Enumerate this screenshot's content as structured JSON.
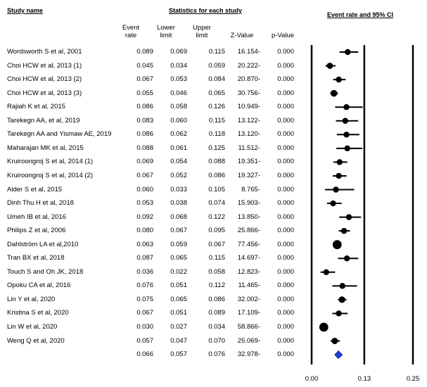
{
  "headers": {
    "study_name": "Study name",
    "statistics": "Statistics for each study",
    "plot_title": "Event rate and 95% CI"
  },
  "columns": {
    "event_rate": [
      "Event",
      "rate"
    ],
    "lower_limit": [
      "Lower",
      "limit"
    ],
    "upper_limit": [
      "Upper",
      "limit"
    ],
    "z_value": "Z-Value",
    "p_value": "p-Value"
  },
  "chart_data": {
    "type": "forest",
    "title": "Event rate and 95% CI",
    "x_ticks": [
      0.0,
      0.13,
      0.25
    ],
    "x_tick_labels": [
      "0.00",
      "0.13",
      "0.25"
    ],
    "xlim": [
      0.0,
      0.25
    ],
    "reference_lines": [
      0.0,
      0.13,
      0.25
    ],
    "studies": [
      {
        "name": "Wordsworth S et al, 2001",
        "rate": "0.089",
        "lower": "0.069",
        "upper": "0.115",
        "z": "16.154-",
        "p": "0.000"
      },
      {
        "name": "Choi HCW  et al, 2013 (1)",
        "rate": "0.045",
        "lower": "0.034",
        "upper": "0.059",
        "z": "20.222-",
        "p": "0.000"
      },
      {
        "name": "Choi HCW  et al, 2013 (2)",
        "rate": "0.067",
        "lower": "0.053",
        "upper": "0.084",
        "z": "20.870-",
        "p": "0.000"
      },
      {
        "name": "Choi HCW  et al, 2013 (3)",
        "rate": "0.055",
        "lower": "0.046",
        "upper": "0.065",
        "z": "30.756-",
        "p": "0.000"
      },
      {
        "name": "Rajiah K et al, 2015",
        "rate": "0.086",
        "lower": "0.058",
        "upper": "0.126",
        "z": "10.949-",
        "p": "0.000"
      },
      {
        "name": "Tarekegn AA, et al, 2019",
        "rate": "0.083",
        "lower": "0.060",
        "upper": "0.115",
        "z": "13.122-",
        "p": "0.000"
      },
      {
        "name": "Tarekegn AA and Yismaw AE, 2019",
        "rate": "0.086",
        "lower": "0.062",
        "upper": "0.118",
        "z": "13.120-",
        "p": "0.000"
      },
      {
        "name": "Maharajan MK et al, 2015",
        "rate": "0.088",
        "lower": "0.061",
        "upper": "0.125",
        "z": "11.512-",
        "p": "0.000"
      },
      {
        "name": "Kruiroongroj S et al, 2014 (1)",
        "rate": "0.069",
        "lower": "0.054",
        "upper": "0.088",
        "z": "19.351-",
        "p": "0.000"
      },
      {
        "name": "Kruiroongroj S et al, 2014 (2)",
        "rate": "0.067",
        "lower": "0.052",
        "upper": "0.086",
        "z": "19.327-",
        "p": "0.000"
      },
      {
        "name": "Alder S et al, 2015",
        "rate": "0.060",
        "lower": "0.033",
        "upper": "0.105",
        "z": "8.765-",
        "p": "0.000"
      },
      {
        "name": " Dinh Thu H et al, 2018",
        "rate": "0.053",
        "lower": "0.038",
        "upper": "0.074",
        "z": "15.903-",
        "p": "0.000"
      },
      {
        "name": "Umeh IB et al, 2016",
        "rate": "0.092",
        "lower": "0.068",
        "upper": "0.122",
        "z": "13.850-",
        "p": "0.000"
      },
      {
        "name": "Philips Z et al, 2006",
        "rate": "0.080",
        "lower": "0.067",
        "upper": "0.095",
        "z": "25.866-",
        "p": "0.000"
      },
      {
        "name": "Dahlström LA et al,2010",
        "rate": "0.063",
        "lower": "0.059",
        "upper": "0.067",
        "z": "77.456-",
        "p": "0.000"
      },
      {
        "name": "Tran BX et al, 2018",
        "rate": "0.087",
        "lower": "0.065",
        "upper": "0.115",
        "z": "14.697-",
        "p": "0.000"
      },
      {
        "name": "Touch S and Oh JK, 2018",
        "rate": "0.036",
        "lower": "0.022",
        "upper": "0.058",
        "z": "12.823-",
        "p": "0.000"
      },
      {
        "name": "Opoku CA et al, 2016",
        "rate": "0.076",
        "lower": "0.051",
        "upper": "0.112",
        "z": "11.465-",
        "p": "0.000"
      },
      {
        "name": "Lin Y et al, 2020",
        "rate": "0.075",
        "lower": "0.065",
        "upper": "0.086",
        "z": "32.002-",
        "p": "0.000"
      },
      {
        "name": "Kristina S et al, 2020",
        "rate": "0.067",
        "lower": "0.051",
        "upper": "0.089",
        "z": "17.109-",
        "p": "0.000"
      },
      {
        "name": "Lin W et al, 2020",
        "rate": "0.030",
        "lower": "0.027",
        "upper": "0.034",
        "z": "58.866-",
        "p": "0.000"
      },
      {
        "name": "Weng Q et al, 2020",
        "rate": "0.057",
        "lower": "0.047",
        "upper": "0.070",
        "z": "25.069-",
        "p": "0.000"
      }
    ],
    "pooled": {
      "name": "",
      "rate": "0.066",
      "lower": "0.057",
      "upper": "0.076",
      "z": "32.978-",
      "p": "0.000"
    },
    "colors": {
      "marker": "#000000",
      "pooled": "#1f3fd8",
      "pooled_outline": "#0a1a80",
      "line": "#000000"
    }
  }
}
